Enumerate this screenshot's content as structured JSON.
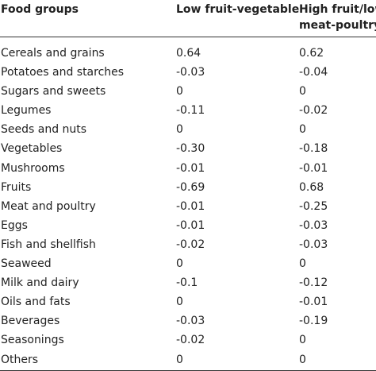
{
  "table": {
    "headers": {
      "food_groups": "Food groups",
      "low_fruit_vegetable": "Low fruit-vegetable",
      "high_fruit_low_line1": "High fruit/low",
      "high_fruit_low_line2": "meat-poultry"
    },
    "rows": [
      {
        "food": "Cereals and grains",
        "low": "0.64",
        "high": "0.62"
      },
      {
        "food": "Potatoes and starches",
        "low": "-0.03",
        "high": "-0.04"
      },
      {
        "food": "Sugars and sweets",
        "low": "0",
        "high": "0"
      },
      {
        "food": "Legumes",
        "low": "-0.11",
        "high": "-0.02"
      },
      {
        "food": "Seeds and nuts",
        "low": "0",
        "high": "0"
      },
      {
        "food": "Vegetables",
        "low": "-0.30",
        "high": "-0.18"
      },
      {
        "food": "Mushrooms",
        "low": "-0.01",
        "high": "-0.01"
      },
      {
        "food": "Fruits",
        "low": "-0.69",
        "high": "0.68"
      },
      {
        "food": "Meat and poultry",
        "low": "-0.01",
        "high": "-0.25"
      },
      {
        "food": "Eggs",
        "low": "-0.01",
        "high": "-0.03"
      },
      {
        "food": "Fish and shellfish",
        "low": "-0.02",
        "high": "-0.03"
      },
      {
        "food": "Seaweed",
        "low": "0",
        "high": "0"
      },
      {
        "food": "Milk and dairy",
        "low": "-0.1",
        "high": "-0.12"
      },
      {
        "food": "Oils and fats",
        "low": "0",
        "high": "-0.01"
      },
      {
        "food": "Beverages",
        "low": "-0.03",
        "high": "-0.19"
      },
      {
        "food": "Seasonings",
        "low": "-0.02",
        "high": "0"
      },
      {
        "food": "Others",
        "low": "0",
        "high": "0"
      }
    ]
  }
}
